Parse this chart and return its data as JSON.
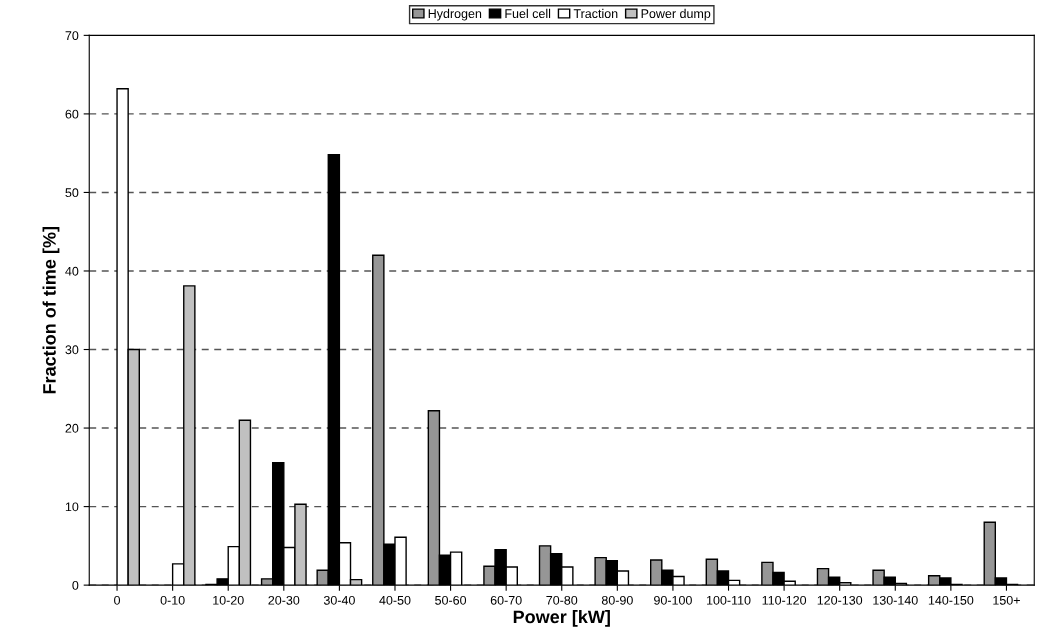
{
  "chart_data": {
    "type": "bar",
    "xlabel": "Power [kW]",
    "ylabel": "Fraction of time [%]",
    "categories": [
      "0",
      "0-10",
      "10-20",
      "20-30",
      "30-40",
      "40-50",
      "50-60",
      "60-70",
      "70-80",
      "80-90",
      "90-100",
      "100-110",
      "110-120",
      "120-130",
      "130-140",
      "140-150",
      "150+"
    ],
    "series": [
      {
        "name": "Hydrogen",
        "color": "#969696",
        "values": [
          null,
          null,
          0.1,
          0.8,
          1.9,
          42,
          22.2,
          2.4,
          5.0,
          3.5,
          3.2,
          3.3,
          2.9,
          2.1,
          1.9,
          1.2,
          8.0
        ]
      },
      {
        "name": "Fuel cell",
        "color": "#000000",
        "values": [
          null,
          null,
          0.8,
          15.6,
          54.8,
          5.2,
          3.8,
          4.5,
          4.0,
          3.1,
          1.9,
          1.8,
          1.6,
          1.0,
          1.0,
          0.9,
          0.9
        ]
      },
      {
        "name": "Traction",
        "color": "#ffffff",
        "values": [
          63.2,
          2.7,
          4.9,
          4.8,
          5.4,
          6.1,
          4.2,
          2.3,
          2.3,
          1.8,
          1.1,
          0.6,
          0.5,
          0.3,
          0.2,
          0.1,
          0.1
        ]
      },
      {
        "name": "Power dump",
        "color": "#c0c0c0",
        "values": [
          30,
          38.1,
          21,
          10.3,
          0.7,
          null,
          null,
          null,
          null,
          null,
          null,
          null,
          null,
          null,
          null,
          null,
          null
        ]
      }
    ],
    "ylim": [
      0,
      70
    ],
    "yticks": [
      0,
      10,
      20,
      30,
      40,
      50,
      60,
      70
    ],
    "grid": "y",
    "legend": "top",
    "line_style": "dashed"
  }
}
